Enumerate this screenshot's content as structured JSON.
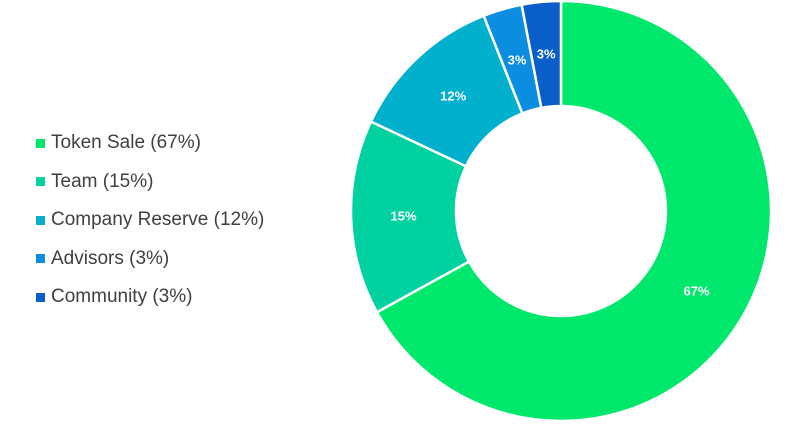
{
  "chart_data": {
    "type": "pie",
    "variant": "donut",
    "categories": [
      "Token Sale",
      "Team",
      "Company Reserve",
      "Advisors",
      "Community"
    ],
    "values": [
      67,
      15,
      12,
      3,
      3
    ],
    "legend_labels": [
      "Token Sale (67%)",
      "Team (15%)",
      "Company Reserve (12%)",
      "Advisors (3%)",
      "Community (3%)"
    ],
    "data_labels": [
      "67%",
      "15%",
      "12%",
      "3%",
      "3%"
    ],
    "colors": [
      "#00e86c",
      "#00d1a1",
      "#00b0cc",
      "#0b8ee0",
      "#0a5ec9"
    ],
    "legend_position": "left",
    "start": "top, clockwise",
    "title": "",
    "xlabel": "",
    "ylabel": ""
  }
}
